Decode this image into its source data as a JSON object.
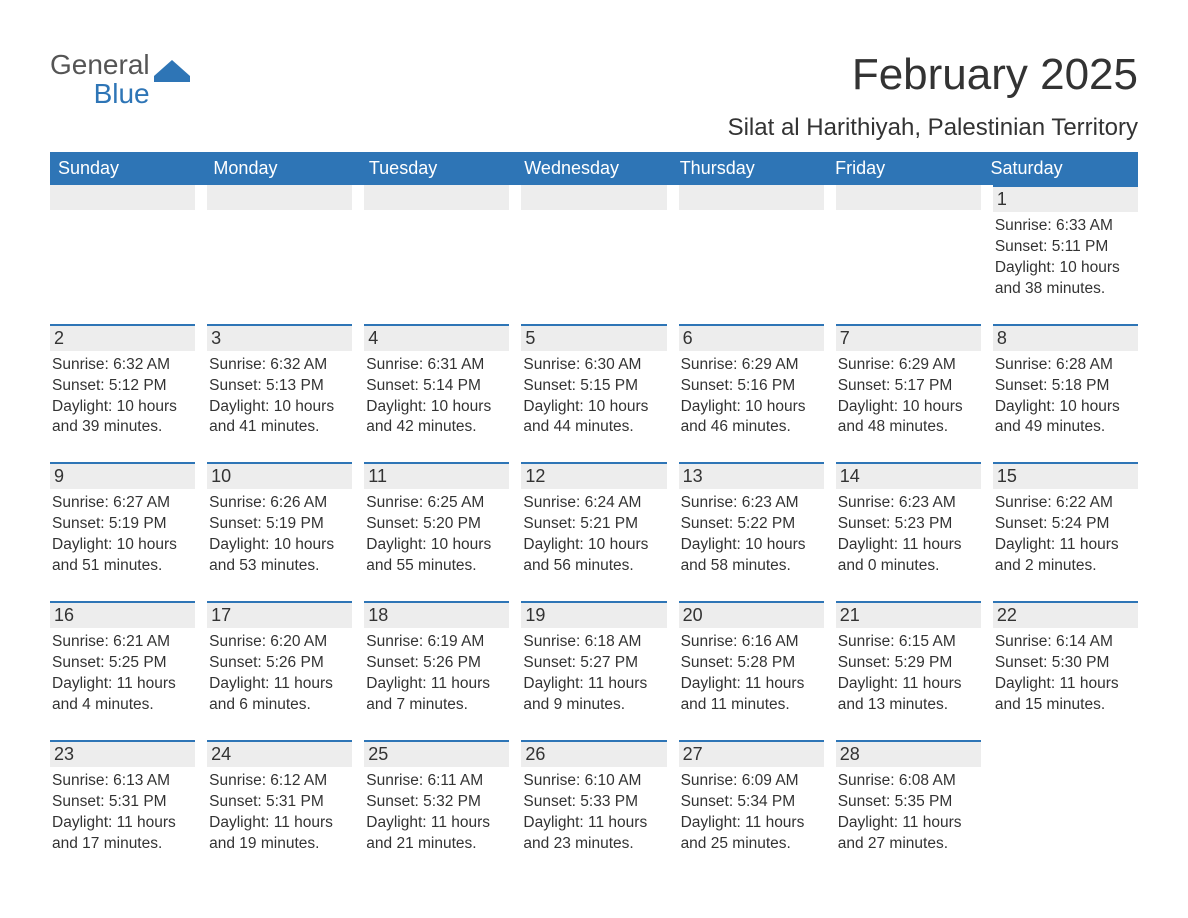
{
  "logo": {
    "general": "General",
    "blue": "Blue",
    "accent_color": "#2e75b6"
  },
  "title": "February 2025",
  "location": "Silat al Harithiyah, Palestinian Territory",
  "colors": {
    "header_bg": "#2e75b6",
    "header_text": "#ffffff",
    "daybar_bg": "#ededed",
    "daybar_border": "#2e75b6",
    "body_text": "#333333",
    "background": "#ffffff"
  },
  "typography": {
    "title_fontsize": 44,
    "location_fontsize": 24,
    "dow_fontsize": 18,
    "daynum_fontsize": 18,
    "info_fontsize": 15.5,
    "font_family": "Segoe UI, Arial, sans-serif"
  },
  "dow": [
    "Sunday",
    "Monday",
    "Tuesday",
    "Wednesday",
    "Thursday",
    "Friday",
    "Saturday"
  ],
  "weeks": [
    [
      {
        "empty": true
      },
      {
        "empty": true
      },
      {
        "empty": true
      },
      {
        "empty": true
      },
      {
        "empty": true
      },
      {
        "empty": true
      },
      {
        "num": "1",
        "sunrise": "Sunrise: 6:33 AM",
        "sunset": "Sunset: 5:11 PM",
        "day_a": "Daylight: 10 hours",
        "day_b": "and 38 minutes."
      }
    ],
    [
      {
        "num": "2",
        "sunrise": "Sunrise: 6:32 AM",
        "sunset": "Sunset: 5:12 PM",
        "day_a": "Daylight: 10 hours",
        "day_b": "and 39 minutes."
      },
      {
        "num": "3",
        "sunrise": "Sunrise: 6:32 AM",
        "sunset": "Sunset: 5:13 PM",
        "day_a": "Daylight: 10 hours",
        "day_b": "and 41 minutes."
      },
      {
        "num": "4",
        "sunrise": "Sunrise: 6:31 AM",
        "sunset": "Sunset: 5:14 PM",
        "day_a": "Daylight: 10 hours",
        "day_b": "and 42 minutes."
      },
      {
        "num": "5",
        "sunrise": "Sunrise: 6:30 AM",
        "sunset": "Sunset: 5:15 PM",
        "day_a": "Daylight: 10 hours",
        "day_b": "and 44 minutes."
      },
      {
        "num": "6",
        "sunrise": "Sunrise: 6:29 AM",
        "sunset": "Sunset: 5:16 PM",
        "day_a": "Daylight: 10 hours",
        "day_b": "and 46 minutes."
      },
      {
        "num": "7",
        "sunrise": "Sunrise: 6:29 AM",
        "sunset": "Sunset: 5:17 PM",
        "day_a": "Daylight: 10 hours",
        "day_b": "and 48 minutes."
      },
      {
        "num": "8",
        "sunrise": "Sunrise: 6:28 AM",
        "sunset": "Sunset: 5:18 PM",
        "day_a": "Daylight: 10 hours",
        "day_b": "and 49 minutes."
      }
    ],
    [
      {
        "num": "9",
        "sunrise": "Sunrise: 6:27 AM",
        "sunset": "Sunset: 5:19 PM",
        "day_a": "Daylight: 10 hours",
        "day_b": "and 51 minutes."
      },
      {
        "num": "10",
        "sunrise": "Sunrise: 6:26 AM",
        "sunset": "Sunset: 5:19 PM",
        "day_a": "Daylight: 10 hours",
        "day_b": "and 53 minutes."
      },
      {
        "num": "11",
        "sunrise": "Sunrise: 6:25 AM",
        "sunset": "Sunset: 5:20 PM",
        "day_a": "Daylight: 10 hours",
        "day_b": "and 55 minutes."
      },
      {
        "num": "12",
        "sunrise": "Sunrise: 6:24 AM",
        "sunset": "Sunset: 5:21 PM",
        "day_a": "Daylight: 10 hours",
        "day_b": "and 56 minutes."
      },
      {
        "num": "13",
        "sunrise": "Sunrise: 6:23 AM",
        "sunset": "Sunset: 5:22 PM",
        "day_a": "Daylight: 10 hours",
        "day_b": "and 58 minutes."
      },
      {
        "num": "14",
        "sunrise": "Sunrise: 6:23 AM",
        "sunset": "Sunset: 5:23 PM",
        "day_a": "Daylight: 11 hours",
        "day_b": "and 0 minutes."
      },
      {
        "num": "15",
        "sunrise": "Sunrise: 6:22 AM",
        "sunset": "Sunset: 5:24 PM",
        "day_a": "Daylight: 11 hours",
        "day_b": "and 2 minutes."
      }
    ],
    [
      {
        "num": "16",
        "sunrise": "Sunrise: 6:21 AM",
        "sunset": "Sunset: 5:25 PM",
        "day_a": "Daylight: 11 hours",
        "day_b": "and 4 minutes."
      },
      {
        "num": "17",
        "sunrise": "Sunrise: 6:20 AM",
        "sunset": "Sunset: 5:26 PM",
        "day_a": "Daylight: 11 hours",
        "day_b": "and 6 minutes."
      },
      {
        "num": "18",
        "sunrise": "Sunrise: 6:19 AM",
        "sunset": "Sunset: 5:26 PM",
        "day_a": "Daylight: 11 hours",
        "day_b": "and 7 minutes."
      },
      {
        "num": "19",
        "sunrise": "Sunrise: 6:18 AM",
        "sunset": "Sunset: 5:27 PM",
        "day_a": "Daylight: 11 hours",
        "day_b": "and 9 minutes."
      },
      {
        "num": "20",
        "sunrise": "Sunrise: 6:16 AM",
        "sunset": "Sunset: 5:28 PM",
        "day_a": "Daylight: 11 hours",
        "day_b": "and 11 minutes."
      },
      {
        "num": "21",
        "sunrise": "Sunrise: 6:15 AM",
        "sunset": "Sunset: 5:29 PM",
        "day_a": "Daylight: 11 hours",
        "day_b": "and 13 minutes."
      },
      {
        "num": "22",
        "sunrise": "Sunrise: 6:14 AM",
        "sunset": "Sunset: 5:30 PM",
        "day_a": "Daylight: 11 hours",
        "day_b": "and 15 minutes."
      }
    ],
    [
      {
        "num": "23",
        "sunrise": "Sunrise: 6:13 AM",
        "sunset": "Sunset: 5:31 PM",
        "day_a": "Daylight: 11 hours",
        "day_b": "and 17 minutes."
      },
      {
        "num": "24",
        "sunrise": "Sunrise: 6:12 AM",
        "sunset": "Sunset: 5:31 PM",
        "day_a": "Daylight: 11 hours",
        "day_b": "and 19 minutes."
      },
      {
        "num": "25",
        "sunrise": "Sunrise: 6:11 AM",
        "sunset": "Sunset: 5:32 PM",
        "day_a": "Daylight: 11 hours",
        "day_b": "and 21 minutes."
      },
      {
        "num": "26",
        "sunrise": "Sunrise: 6:10 AM",
        "sunset": "Sunset: 5:33 PM",
        "day_a": "Daylight: 11 hours",
        "day_b": "and 23 minutes."
      },
      {
        "num": "27",
        "sunrise": "Sunrise: 6:09 AM",
        "sunset": "Sunset: 5:34 PM",
        "day_a": "Daylight: 11 hours",
        "day_b": "and 25 minutes."
      },
      {
        "num": "28",
        "sunrise": "Sunrise: 6:08 AM",
        "sunset": "Sunset: 5:35 PM",
        "day_a": "Daylight: 11 hours",
        "day_b": "and 27 minutes."
      },
      {
        "empty": true,
        "trailing": true
      }
    ]
  ]
}
